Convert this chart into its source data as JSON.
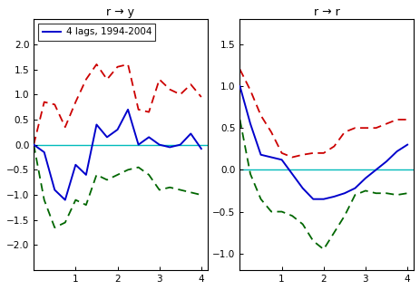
{
  "left_title": "r → y",
  "right_title": "r → r",
  "legend_label": "4 lags, 1994-2004",
  "x": [
    0,
    0.25,
    0.5,
    0.75,
    1.0,
    1.25,
    1.5,
    1.75,
    2.0,
    2.25,
    2.5,
    2.75,
    3.0,
    3.25,
    3.5,
    3.75,
    4.0
  ],
  "left_blue": [
    0.0,
    -0.15,
    -0.9,
    -1.1,
    -0.4,
    -0.6,
    0.4,
    0.15,
    0.3,
    0.7,
    0.0,
    0.15,
    0.0,
    -0.05,
    0.0,
    0.22,
    -0.08
  ],
  "left_red": [
    0.0,
    0.85,
    0.8,
    0.35,
    0.85,
    1.3,
    1.6,
    1.3,
    1.55,
    1.6,
    0.7,
    0.65,
    1.3,
    1.1,
    1.0,
    1.2,
    0.95
  ],
  "left_green": [
    0.0,
    -1.1,
    -1.65,
    -1.55,
    -1.1,
    -1.2,
    -0.6,
    -0.7,
    -0.6,
    -0.5,
    -0.45,
    -0.6,
    -0.9,
    -0.85,
    -0.9,
    -0.95,
    -1.0
  ],
  "right_blue": [
    1.0,
    0.55,
    0.18,
    0.15,
    0.12,
    -0.05,
    -0.22,
    -0.35,
    -0.35,
    -0.32,
    -0.28,
    -0.22,
    -0.1,
    0.0,
    0.1,
    0.22,
    0.3
  ],
  "right_red": [
    1.2,
    0.95,
    0.65,
    0.45,
    0.2,
    0.15,
    0.18,
    0.2,
    0.2,
    0.28,
    0.45,
    0.5,
    0.5,
    0.5,
    0.55,
    0.6,
    0.6
  ],
  "right_green": [
    0.6,
    -0.05,
    -0.35,
    -0.5,
    -0.5,
    -0.55,
    -0.65,
    -0.85,
    -0.95,
    -0.75,
    -0.55,
    -0.3,
    -0.25,
    -0.28,
    -0.28,
    -0.3,
    -0.28
  ],
  "left_ylim": [
    -2.5,
    2.5
  ],
  "right_ylim": [
    -1.2,
    1.8
  ],
  "left_yticks": [
    -2.0,
    -1.5,
    -1.0,
    -0.5,
    0.0,
    0.5,
    1.0,
    1.5,
    2.0
  ],
  "right_yticks": [
    -1.0,
    -0.5,
    0.0,
    0.5,
    1.0,
    1.5
  ],
  "xlim": [
    0.0,
    4.15
  ],
  "xticks": [
    1,
    2,
    3,
    4
  ],
  "blue_color": "#0000cc",
  "red_color": "#cc0000",
  "green_color": "#006600",
  "cyan_color": "#00bbbb",
  "bg_color": "#ffffff",
  "title_fontsize": 9,
  "tick_fontsize": 7.5,
  "legend_fontsize": 7.5
}
